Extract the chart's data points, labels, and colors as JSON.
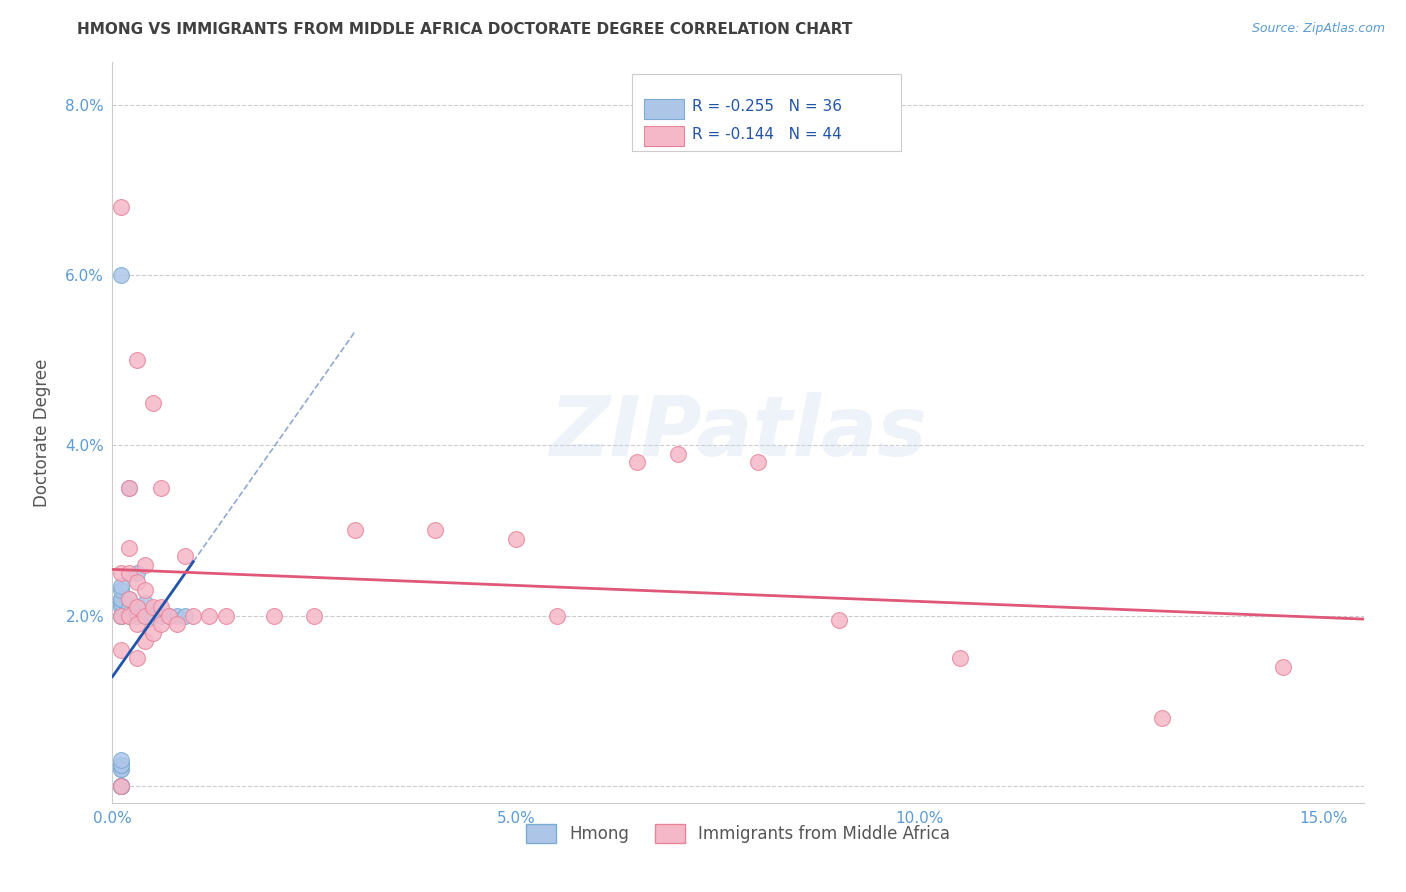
{
  "title": "HMONG VS IMMIGRANTS FROM MIDDLE AFRICA DOCTORATE DEGREE CORRELATION CHART",
  "source": "Source: ZipAtlas.com",
  "ylabel": "Doctorate Degree",
  "xlim": [
    0.0,
    0.155
  ],
  "ylim": [
    -0.002,
    0.085
  ],
  "xticks": [
    0.0,
    0.05,
    0.1,
    0.15
  ],
  "yticks": [
    0.0,
    0.02,
    0.04,
    0.06,
    0.08
  ],
  "xticklabels": [
    "0.0%",
    "5.0%",
    "10.0%",
    "15.0%"
  ],
  "yticklabels": [
    "",
    "2.0%",
    "4.0%",
    "6.0%",
    "8.0%"
  ],
  "series1_name": "Hmong",
  "series2_name": "Immigrants from Middle Africa",
  "series1_R": -0.255,
  "series1_N": 36,
  "series2_R": -0.144,
  "series2_N": 44,
  "series1_color": "#adc6e8",
  "series1_edge": "#7aacd4",
  "series2_color": "#f5b8c8",
  "series2_edge": "#e8849a",
  "trendline1_color": "#2255aa",
  "trendline2_color": "#e05878",
  "watermark": "ZIPatlas",
  "bg_color": "#ffffff",
  "grid_color": "#cccccc",
  "title_color": "#404040",
  "axis_label_color": "#5b9bd5",
  "ylabel_color": "#555555",
  "legend_text_color": "#2255aa",
  "hmong_x": [
    0.001,
    0.001,
    0.001,
    0.001,
    0.001,
    0.001,
    0.001,
    0.001,
    0.001,
    0.001,
    0.001,
    0.001,
    0.001,
    0.001,
    0.001,
    0.001,
    0.001,
    0.001,
    0.001,
    0.001,
    0.001,
    0.001,
    0.002,
    0.002,
    0.002,
    0.002,
    0.003,
    0.003,
    0.003,
    0.004,
    0.004,
    0.005,
    0.006,
    0.007,
    0.008,
    0.009
  ],
  "hmong_y": [
    0.0,
    0.0,
    0.0,
    0.0,
    0.0,
    0.0,
    0.0,
    0.002,
    0.002,
    0.0025,
    0.0025,
    0.003,
    0.02,
    0.02,
    0.021,
    0.0215,
    0.022,
    0.022,
    0.022,
    0.023,
    0.0235,
    0.06,
    0.02,
    0.021,
    0.022,
    0.035,
    0.02,
    0.021,
    0.025,
    0.02,
    0.0215,
    0.02,
    0.02,
    0.02,
    0.02,
    0.02
  ],
  "africa_x": [
    0.001,
    0.001,
    0.001,
    0.001,
    0.001,
    0.002,
    0.002,
    0.002,
    0.002,
    0.002,
    0.003,
    0.003,
    0.003,
    0.003,
    0.003,
    0.004,
    0.004,
    0.004,
    0.004,
    0.005,
    0.005,
    0.005,
    0.006,
    0.006,
    0.006,
    0.007,
    0.008,
    0.009,
    0.01,
    0.012,
    0.014,
    0.02,
    0.025,
    0.03,
    0.04,
    0.05,
    0.055,
    0.065,
    0.07,
    0.08,
    0.09,
    0.105,
    0.13,
    0.145
  ],
  "africa_y": [
    0.0,
    0.016,
    0.02,
    0.025,
    0.068,
    0.02,
    0.022,
    0.025,
    0.028,
    0.035,
    0.015,
    0.019,
    0.021,
    0.024,
    0.05,
    0.017,
    0.02,
    0.023,
    0.026,
    0.018,
    0.021,
    0.045,
    0.019,
    0.021,
    0.035,
    0.02,
    0.019,
    0.027,
    0.02,
    0.02,
    0.02,
    0.02,
    0.02,
    0.03,
    0.03,
    0.029,
    0.02,
    0.038,
    0.039,
    0.038,
    0.0195,
    0.015,
    0.008,
    0.014
  ]
}
